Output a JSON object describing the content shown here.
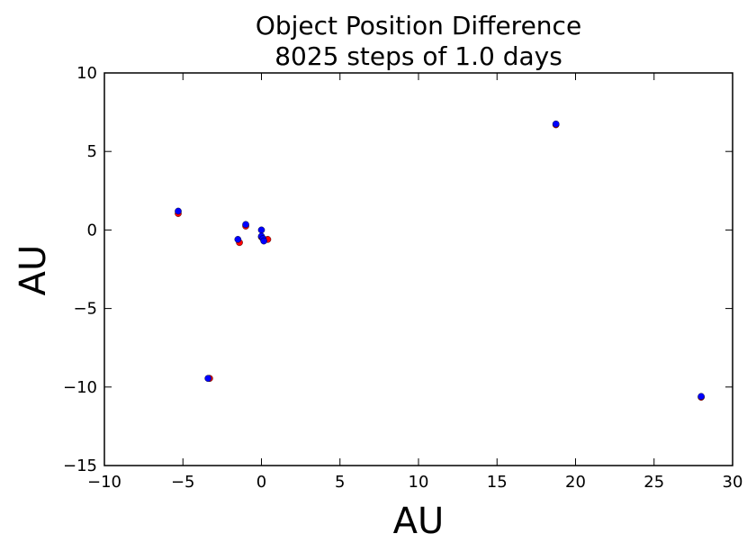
{
  "chart_data": {
    "type": "scatter",
    "title": [
      "Object Position Difference",
      "8025 steps of 1.0 days"
    ],
    "xlabel": "AU",
    "ylabel": "AU",
    "xlim": [
      -10,
      30
    ],
    "ylim": [
      -15,
      10
    ],
    "xticks": [
      -10,
      -5,
      0,
      5,
      10,
      15,
      20,
      25,
      30
    ],
    "xtick_labels": [
      "−10",
      "−5",
      "0",
      "5",
      "10",
      "15",
      "20",
      "25",
      "30"
    ],
    "yticks": [
      -15,
      -10,
      -5,
      0,
      5,
      10
    ],
    "ytick_labels": [
      "−15",
      "−10",
      "−5",
      "0",
      "5",
      "10"
    ],
    "grid": false,
    "series": [
      {
        "color": "#ff0000",
        "points": [
          [
            -5.3,
            1.05
          ],
          [
            -3.3,
            -9.45
          ],
          [
            -1.4,
            -0.8
          ],
          [
            -1.0,
            0.25
          ],
          [
            0.0,
            -0.45
          ],
          [
            0.15,
            -0.6
          ],
          [
            0.4,
            -0.6
          ],
          [
            18.75,
            6.7
          ],
          [
            28.0,
            -10.65
          ]
        ]
      },
      {
        "color": "#0000ff",
        "points": [
          [
            -5.3,
            1.2
          ],
          [
            -3.4,
            -9.45
          ],
          [
            -1.5,
            -0.6
          ],
          [
            -1.0,
            0.35
          ],
          [
            0.0,
            0.0
          ],
          [
            0.0,
            -0.4
          ],
          [
            0.1,
            -0.55
          ],
          [
            0.15,
            -0.7
          ],
          [
            18.75,
            6.75
          ],
          [
            28.0,
            -10.6
          ]
        ]
      }
    ]
  }
}
